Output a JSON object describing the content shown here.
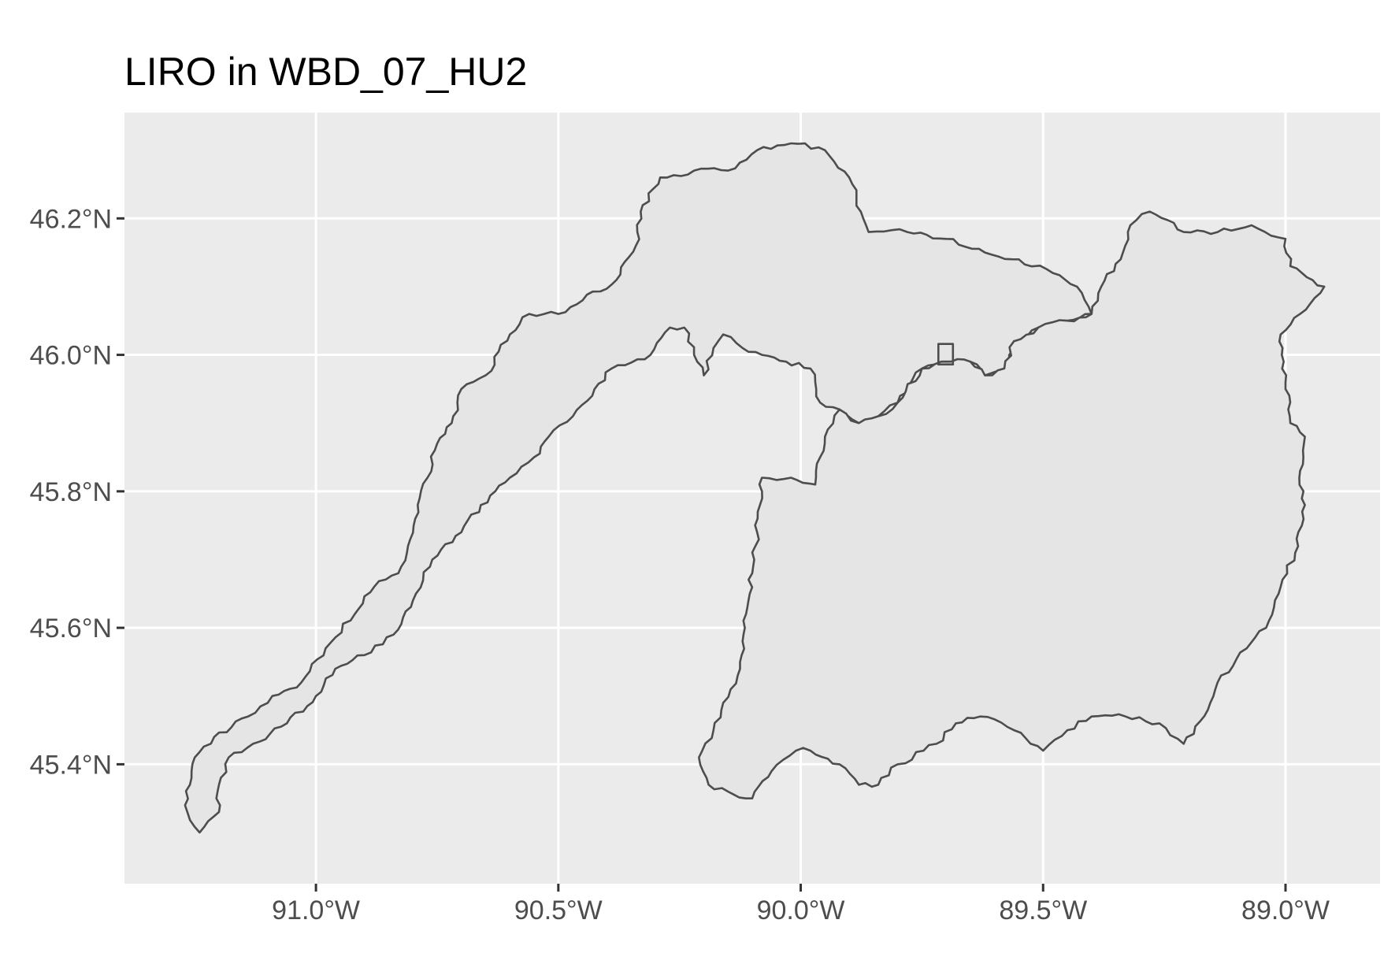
{
  "title": "LIRO in WBD_07_HU2",
  "panel": {
    "background_color": "#ebebeb",
    "gridline_color": "#ffffff"
  },
  "axes": {
    "x_ticks": [
      {
        "value": -91.0,
        "label": "91.0°W"
      },
      {
        "value": -90.5,
        "label": "90.5°W"
      },
      {
        "value": -90.0,
        "label": "90.0°W"
      },
      {
        "value": -89.5,
        "label": "89.5°W"
      },
      {
        "value": -89.0,
        "label": "89.0°W"
      }
    ],
    "y_ticks": [
      {
        "value": 46.2,
        "label": "46.2°N"
      },
      {
        "value": 46.0,
        "label": "46.0°N"
      },
      {
        "value": 45.8,
        "label": "45.8°N"
      },
      {
        "value": 45.6,
        "label": "45.6°N"
      },
      {
        "value": 45.4,
        "label": "45.4°N"
      }
    ],
    "x_range": [
      -91.395,
      -88.805
    ],
    "y_range": [
      45.225,
      46.355
    ]
  },
  "layers": [
    {
      "name": "west-watershed",
      "fill": "#e5e5e5",
      "stroke": "#4d4d4d",
      "coordinates": [
        [
          -91.24,
          45.3
        ],
        [
          -91.27,
          45.34
        ],
        [
          -91.26,
          45.37
        ],
        [
          -91.25,
          45.41
        ],
        [
          -91.21,
          45.44
        ],
        [
          -91.14,
          45.47
        ],
        [
          -91.09,
          45.5
        ],
        [
          -91.03,
          45.52
        ],
        [
          -90.98,
          45.57
        ],
        [
          -90.92,
          45.62
        ],
        [
          -90.88,
          45.66
        ],
        [
          -90.83,
          45.68
        ],
        [
          -90.81,
          45.72
        ],
        [
          -90.79,
          45.78
        ],
        [
          -90.77,
          45.82
        ],
        [
          -90.75,
          45.87
        ],
        [
          -90.72,
          45.9
        ],
        [
          -90.7,
          45.95
        ],
        [
          -90.65,
          45.97
        ],
        [
          -90.6,
          46.03
        ],
        [
          -90.56,
          46.06
        ],
        [
          -90.5,
          46.06
        ],
        [
          -90.45,
          46.08
        ],
        [
          -90.38,
          46.11
        ],
        [
          -90.34,
          46.16
        ],
        [
          -90.33,
          46.21
        ],
        [
          -90.29,
          46.26
        ],
        [
          -90.22,
          46.27
        ],
        [
          -90.15,
          46.27
        ],
        [
          -90.09,
          46.3
        ],
        [
          -90.02,
          46.31
        ],
        [
          -89.95,
          46.3
        ],
        [
          -89.9,
          46.26
        ],
        [
          -89.86,
          46.18
        ],
        [
          -89.78,
          46.18
        ],
        [
          -89.7,
          46.17
        ],
        [
          -89.62,
          46.15
        ],
        [
          -89.55,
          46.14
        ],
        [
          -89.48,
          46.12
        ],
        [
          -89.43,
          46.1
        ],
        [
          -89.4,
          46.06
        ],
        [
          -89.45,
          46.05
        ],
        [
          -89.51,
          46.04
        ],
        [
          -89.56,
          46.02
        ],
        [
          -89.58,
          45.98
        ],
        [
          -89.62,
          45.97
        ],
        [
          -89.65,
          45.99
        ],
        [
          -89.69,
          45.99
        ],
        [
          -89.71,
          45.99
        ],
        [
          -89.75,
          45.98
        ],
        [
          -89.8,
          45.93
        ],
        [
          -89.84,
          45.91
        ],
        [
          -89.88,
          45.9
        ],
        [
          -89.92,
          45.92
        ],
        [
          -89.96,
          45.93
        ],
        [
          -89.97,
          45.96
        ],
        [
          -89.98,
          45.98
        ],
        [
          -90.03,
          45.99
        ],
        [
          -90.08,
          46.0
        ],
        [
          -90.12,
          46.01
        ],
        [
          -90.16,
          46.03
        ],
        [
          -90.18,
          46.01
        ],
        [
          -90.2,
          45.97
        ],
        [
          -90.22,
          46.0
        ],
        [
          -90.24,
          46.04
        ],
        [
          -90.27,
          46.04
        ],
        [
          -90.31,
          46.0
        ],
        [
          -90.39,
          45.98
        ],
        [
          -90.43,
          45.94
        ],
        [
          -90.47,
          45.91
        ],
        [
          -90.52,
          45.88
        ],
        [
          -90.55,
          45.85
        ],
        [
          -90.6,
          45.82
        ],
        [
          -90.66,
          45.78
        ],
        [
          -90.7,
          45.74
        ],
        [
          -90.76,
          45.7
        ],
        [
          -90.8,
          45.64
        ],
        [
          -90.84,
          45.59
        ],
        [
          -90.9,
          45.56
        ],
        [
          -90.96,
          45.54
        ],
        [
          -91.0,
          45.5
        ],
        [
          -91.06,
          45.46
        ],
        [
          -91.13,
          45.43
        ],
        [
          -91.18,
          45.41
        ],
        [
          -91.2,
          45.37
        ],
        [
          -91.2,
          45.33
        ],
        [
          -91.24,
          45.3
        ]
      ]
    },
    {
      "name": "east-watershed",
      "fill": "#e5e5e5",
      "stroke": "#4d4d4d",
      "coordinates": [
        [
          -90.1,
          45.35
        ],
        [
          -90.15,
          45.36
        ],
        [
          -90.19,
          45.37
        ],
        [
          -90.21,
          45.41
        ],
        [
          -90.18,
          45.45
        ],
        [
          -90.16,
          45.49
        ],
        [
          -90.13,
          45.53
        ],
        [
          -90.12,
          45.58
        ],
        [
          -90.11,
          45.63
        ],
        [
          -90.1,
          45.68
        ],
        [
          -90.09,
          45.74
        ],
        [
          -90.08,
          45.82
        ],
        [
          -90.02,
          45.82
        ],
        [
          -89.97,
          45.81
        ],
        [
          -89.96,
          45.85
        ],
        [
          -89.95,
          45.88
        ],
        [
          -89.92,
          45.92
        ],
        [
          -89.88,
          45.9
        ],
        [
          -89.84,
          45.91
        ],
        [
          -89.8,
          45.93
        ],
        [
          -89.75,
          45.98
        ],
        [
          -89.71,
          45.99
        ],
        [
          -89.69,
          45.99
        ],
        [
          -89.65,
          45.99
        ],
        [
          -89.62,
          45.97
        ],
        [
          -89.58,
          45.98
        ],
        [
          -89.56,
          46.02
        ],
        [
          -89.51,
          46.04
        ],
        [
          -89.45,
          46.05
        ],
        [
          -89.4,
          46.06
        ],
        [
          -89.38,
          46.1
        ],
        [
          -89.34,
          46.14
        ],
        [
          -89.32,
          46.19
        ],
        [
          -89.28,
          46.21
        ],
        [
          -89.21,
          46.18
        ],
        [
          -89.14,
          46.18
        ],
        [
          -89.07,
          46.19
        ],
        [
          -89.0,
          46.17
        ],
        [
          -88.99,
          46.13
        ],
        [
          -88.92,
          46.1
        ],
        [
          -88.97,
          46.06
        ],
        [
          -89.01,
          46.03
        ],
        [
          -89.0,
          45.96
        ],
        [
          -88.99,
          45.9
        ],
        [
          -88.96,
          45.88
        ],
        [
          -88.97,
          45.83
        ],
        [
          -88.96,
          45.78
        ],
        [
          -88.98,
          45.71
        ],
        [
          -89.01,
          45.66
        ],
        [
          -89.04,
          45.6
        ],
        [
          -89.08,
          45.57
        ],
        [
          -89.14,
          45.52
        ],
        [
          -89.16,
          45.48
        ],
        [
          -89.21,
          45.43
        ],
        [
          -89.26,
          45.46
        ],
        [
          -89.33,
          45.47
        ],
        [
          -89.4,
          45.47
        ],
        [
          -89.45,
          45.45
        ],
        [
          -89.5,
          45.42
        ],
        [
          -89.56,
          45.45
        ],
        [
          -89.63,
          45.47
        ],
        [
          -89.68,
          45.46
        ],
        [
          -89.72,
          45.43
        ],
        [
          -89.8,
          45.4
        ],
        [
          -89.84,
          45.37
        ],
        [
          -89.88,
          45.37
        ],
        [
          -89.92,
          45.4
        ],
        [
          -89.98,
          45.42
        ],
        [
          -90.01,
          45.42
        ],
        [
          -90.06,
          45.39
        ],
        [
          -90.1,
          45.35
        ]
      ]
    },
    {
      "name": "liro-site-marker",
      "fill": "none",
      "stroke": "#4d4d4d",
      "coordinates": [
        [
          -89.716,
          45.986
        ],
        [
          -89.686,
          45.986
        ],
        [
          -89.686,
          46.016
        ],
        [
          -89.716,
          46.016
        ],
        [
          -89.716,
          45.986
        ]
      ]
    }
  ]
}
